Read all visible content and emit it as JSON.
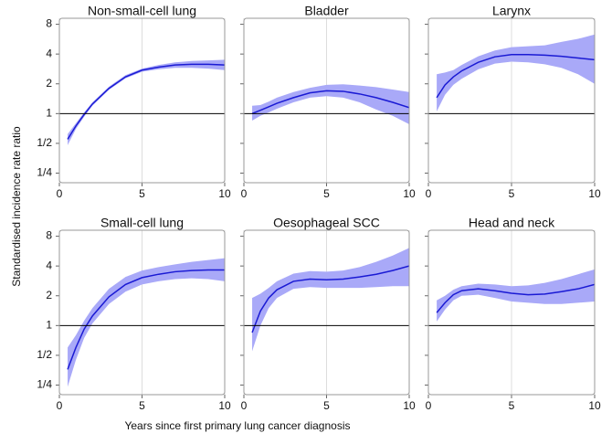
{
  "figure": {
    "xlabel": "Years since first primary lung cancer diagnosis",
    "ylabel": "Standardised incidence rate ratio",
    "xlim": [
      0,
      10
    ],
    "xticks": [
      0,
      5,
      10
    ],
    "ylim": [
      0.2,
      9.2
    ],
    "log_y": true,
    "log_base": 2,
    "yticks": [
      {
        "value": 0.25,
        "label": "1/4"
      },
      {
        "value": 0.5,
        "label": "1/2"
      },
      1,
      2,
      4,
      8
    ],
    "reference_line": 1,
    "grid": true
  },
  "chart_data": [
    {
      "type": "line",
      "title": "Non-small-cell lung",
      "x": [
        0.5,
        1,
        1.5,
        2,
        3,
        4,
        5,
        6,
        7,
        8,
        9,
        10
      ],
      "series": [
        {
          "color": "#1a1ad4",
          "band_color": "#a9a9f8",
          "values": [
            0.55,
            0.75,
            0.98,
            1.25,
            1.8,
            2.35,
            2.75,
            2.95,
            3.1,
            3.15,
            3.15,
            3.1
          ],
          "lower": [
            0.48,
            0.7,
            0.93,
            1.2,
            1.74,
            2.27,
            2.65,
            2.8,
            2.9,
            2.9,
            2.85,
            2.75
          ],
          "upper": [
            0.62,
            0.8,
            1.03,
            1.3,
            1.87,
            2.45,
            2.85,
            3.1,
            3.3,
            3.4,
            3.45,
            3.5
          ]
        }
      ]
    },
    {
      "type": "line",
      "title": "Bladder",
      "x": [
        0.5,
        1,
        1.5,
        2,
        3,
        4,
        5,
        6,
        7,
        8,
        9,
        10
      ],
      "series": [
        {
          "color": "#1a1ad4",
          "band_color": "#a9a9f8",
          "values": [
            1.0,
            1.08,
            1.17,
            1.27,
            1.45,
            1.62,
            1.7,
            1.68,
            1.58,
            1.45,
            1.3,
            1.15
          ],
          "lower": [
            0.85,
            0.95,
            1.03,
            1.12,
            1.3,
            1.45,
            1.5,
            1.45,
            1.3,
            1.1,
            0.95,
            0.78
          ],
          "upper": [
            1.2,
            1.22,
            1.32,
            1.45,
            1.65,
            1.82,
            1.95,
            1.98,
            1.92,
            1.85,
            1.75,
            1.65
          ]
        }
      ]
    },
    {
      "type": "line",
      "title": "Larynx",
      "x": [
        0.5,
        1,
        1.5,
        2,
        3,
        4,
        5,
        6,
        7,
        8,
        9,
        10
      ],
      "series": [
        {
          "color": "#1a1ad4",
          "band_color": "#a9a9f8",
          "values": [
            1.45,
            1.95,
            2.35,
            2.7,
            3.3,
            3.75,
            3.95,
            3.95,
            3.9,
            3.8,
            3.65,
            3.5
          ],
          "lower": [
            1.05,
            1.55,
            1.95,
            2.25,
            2.8,
            3.2,
            3.35,
            3.3,
            3.15,
            2.9,
            2.5,
            2.0
          ],
          "upper": [
            2.5,
            2.6,
            2.75,
            3.1,
            3.8,
            4.35,
            4.7,
            4.8,
            4.9,
            5.3,
            5.7,
            6.3
          ]
        }
      ]
    },
    {
      "type": "line",
      "title": "Small-cell lung",
      "x": [
        0.5,
        1,
        1.5,
        2,
        3,
        4,
        5,
        6,
        7,
        8,
        9,
        10
      ],
      "series": [
        {
          "color": "#1a1ad4",
          "band_color": "#a9a9f8",
          "values": [
            0.36,
            0.6,
            0.92,
            1.25,
            1.95,
            2.6,
            3.05,
            3.3,
            3.5,
            3.6,
            3.65,
            3.65
          ],
          "lower": [
            0.24,
            0.45,
            0.75,
            1.05,
            1.65,
            2.2,
            2.6,
            2.8,
            2.95,
            3.0,
            2.95,
            2.8
          ],
          "upper": [
            0.6,
            0.8,
            1.12,
            1.5,
            2.35,
            3.1,
            3.6,
            3.9,
            4.15,
            4.4,
            4.6,
            4.8
          ]
        }
      ]
    },
    {
      "type": "line",
      "title": "Oesophageal SCC",
      "x": [
        0.5,
        1,
        1.5,
        2,
        3,
        4,
        5,
        6,
        7,
        8,
        9,
        10
      ],
      "series": [
        {
          "color": "#1a1ad4",
          "band_color": "#a9a9f8",
          "values": [
            0.85,
            1.4,
            1.9,
            2.3,
            2.8,
            2.95,
            2.9,
            2.95,
            3.1,
            3.3,
            3.6,
            4.0
          ],
          "lower": [
            0.55,
            1.0,
            1.5,
            1.9,
            2.35,
            2.45,
            2.4,
            2.4,
            2.4,
            2.45,
            2.5,
            2.5
          ],
          "upper": [
            1.9,
            2.1,
            2.4,
            2.8,
            3.35,
            3.55,
            3.5,
            3.6,
            3.9,
            4.4,
            5.1,
            6.1
          ]
        }
      ]
    },
    {
      "type": "line",
      "title": "Head and neck",
      "x": [
        0.5,
        1,
        1.5,
        2,
        3,
        4,
        5,
        6,
        7,
        8,
        9,
        10
      ],
      "series": [
        {
          "color": "#1a1ad4",
          "band_color": "#a9a9f8",
          "values": [
            1.35,
            1.7,
            2.05,
            2.25,
            2.35,
            2.25,
            2.12,
            2.05,
            2.08,
            2.2,
            2.35,
            2.6
          ],
          "lower": [
            1.1,
            1.45,
            1.8,
            2.0,
            2.05,
            1.9,
            1.75,
            1.7,
            1.65,
            1.65,
            1.7,
            1.75
          ],
          "upper": [
            1.8,
            2.0,
            2.3,
            2.5,
            2.65,
            2.6,
            2.5,
            2.55,
            2.7,
            2.95,
            3.3,
            3.7
          ]
        }
      ]
    }
  ]
}
